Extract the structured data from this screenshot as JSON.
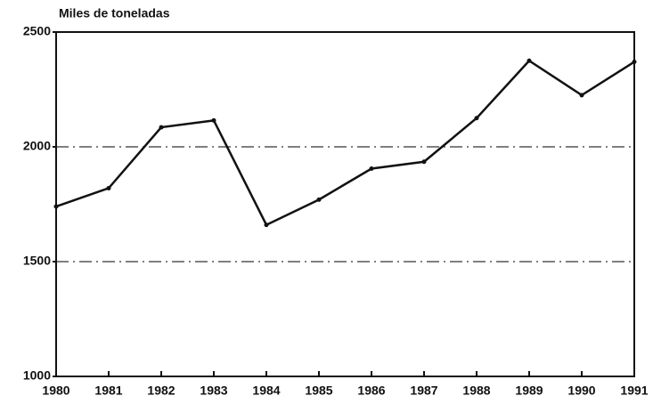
{
  "chart_data": {
    "type": "line",
    "ylabel": "Miles de toneladas",
    "x": [
      1980,
      1981,
      1982,
      1983,
      1984,
      1985,
      1986,
      1987,
      1988,
      1989,
      1990,
      1991
    ],
    "series": [
      {
        "color": "#111111",
        "values": [
          1740,
          1820,
          2085,
          2115,
          1660,
          1770,
          1905,
          1935,
          2125,
          2375,
          2225,
          2370
        ]
      }
    ],
    "xlim": [
      1980,
      1991
    ],
    "xticks": [
      1980,
      1981,
      1982,
      1983,
      1984,
      1985,
      1986,
      1987,
      1988,
      1989,
      1990,
      1991
    ],
    "ylim": [
      1000,
      2500
    ],
    "yticks": [
      1000,
      1500,
      2000,
      2500
    ],
    "grid": true
  }
}
